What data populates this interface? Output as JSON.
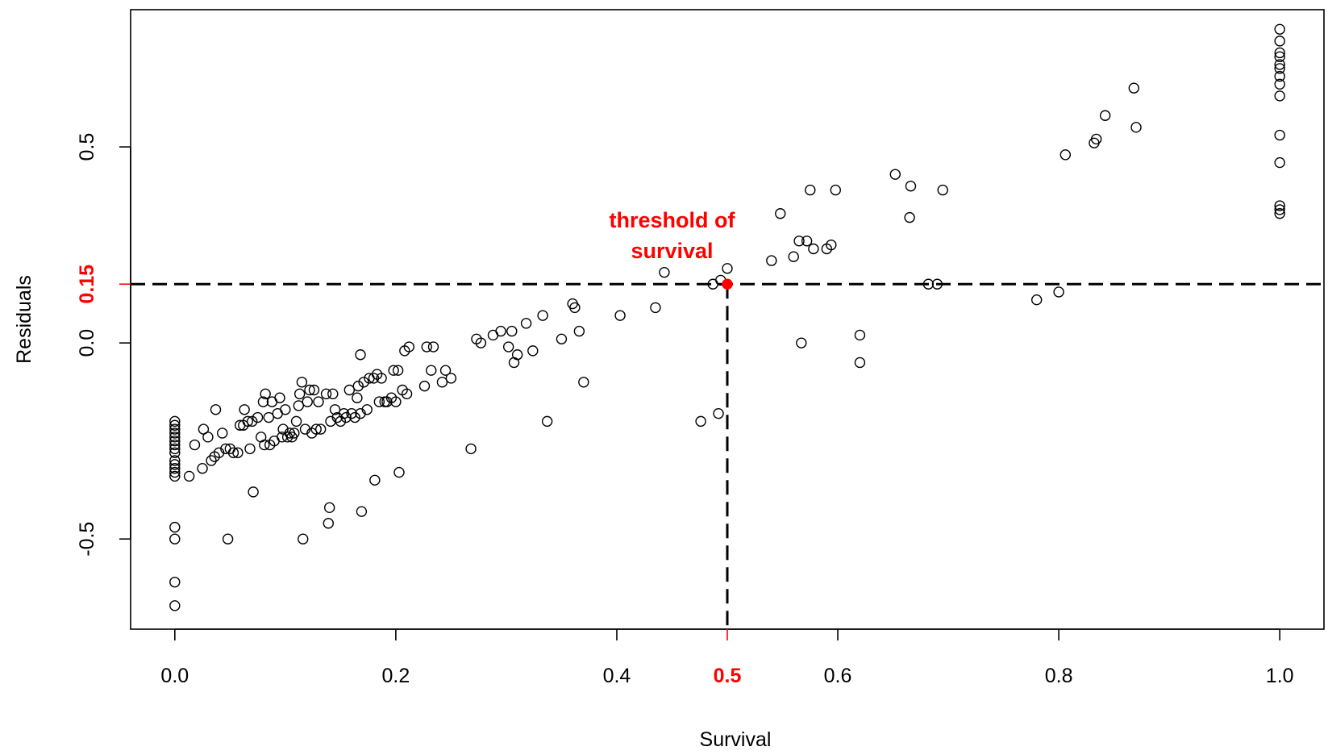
{
  "chart_data": {
    "type": "scatter",
    "xlabel": "Survival",
    "ylabel": "Residuals",
    "xlim": [
      -0.04,
      1.04
    ],
    "ylim": [
      -0.73,
      0.85
    ],
    "x_ticks": [
      0.0,
      0.2,
      0.4,
      0.6,
      0.8,
      1.0
    ],
    "x_tick_labels": [
      "0.0",
      "0.2",
      "0.4",
      "0.6",
      "0.8",
      "1.0"
    ],
    "y_ticks": [
      -0.5,
      0.0,
      0.5
    ],
    "y_tick_labels": [
      "-0.5",
      "0.0",
      "0.5"
    ],
    "highlight": {
      "x": 0.5,
      "y": 0.15,
      "x_label": "0.5",
      "y_label": "0.15",
      "color": "#ff0000",
      "line_style": "dashed"
    },
    "annotation": {
      "line1": "threshold of",
      "line2": "survival",
      "color": "#ff0000"
    },
    "grid": false,
    "legend": "none",
    "points": [
      [
        0.0,
        -0.2
      ],
      [
        0.0,
        -0.21
      ],
      [
        0.0,
        -0.22
      ],
      [
        0.0,
        -0.23
      ],
      [
        0.0,
        -0.24
      ],
      [
        0.0,
        -0.25
      ],
      [
        0.0,
        -0.26
      ],
      [
        0.0,
        -0.27
      ],
      [
        0.0,
        -0.28
      ],
      [
        0.0,
        -0.3
      ],
      [
        0.0,
        -0.31
      ],
      [
        0.0,
        -0.32
      ],
      [
        0.0,
        -0.33
      ],
      [
        0.0,
        -0.34
      ],
      [
        0.0,
        -0.47
      ],
      [
        0.0,
        -0.5
      ],
      [
        0.0,
        -0.61
      ],
      [
        0.0,
        -0.67
      ],
      [
        0.013,
        -0.34
      ],
      [
        0.018,
        -0.26
      ],
      [
        0.025,
        -0.32
      ],
      [
        0.026,
        -0.22
      ],
      [
        0.03,
        -0.24
      ],
      [
        0.033,
        -0.3
      ],
      [
        0.036,
        -0.29
      ],
      [
        0.037,
        -0.17
      ],
      [
        0.04,
        -0.28
      ],
      [
        0.043,
        -0.23
      ],
      [
        0.046,
        -0.27
      ],
      [
        0.048,
        -0.5
      ],
      [
        0.05,
        -0.27
      ],
      [
        0.053,
        -0.28
      ],
      [
        0.057,
        -0.28
      ],
      [
        0.059,
        -0.21
      ],
      [
        0.062,
        -0.21
      ],
      [
        0.063,
        -0.17
      ],
      [
        0.066,
        -0.2
      ],
      [
        0.068,
        -0.27
      ],
      [
        0.07,
        -0.2
      ],
      [
        0.071,
        -0.38
      ],
      [
        0.075,
        -0.19
      ],
      [
        0.078,
        -0.24
      ],
      [
        0.08,
        -0.15
      ],
      [
        0.081,
        -0.26
      ],
      [
        0.082,
        -0.13
      ],
      [
        0.085,
        -0.19
      ],
      [
        0.086,
        -0.26
      ],
      [
        0.088,
        -0.15
      ],
      [
        0.09,
        -0.25
      ],
      [
        0.093,
        -0.18
      ],
      [
        0.095,
        -0.14
      ],
      [
        0.097,
        -0.24
      ],
      [
        0.098,
        -0.22
      ],
      [
        0.1,
        -0.17
      ],
      [
        0.102,
        -0.24
      ],
      [
        0.104,
        -0.23
      ],
      [
        0.106,
        -0.24
      ],
      [
        0.108,
        -0.23
      ],
      [
        0.11,
        -0.2
      ],
      [
        0.112,
        -0.16
      ],
      [
        0.113,
        -0.13
      ],
      [
        0.115,
        -0.1
      ],
      [
        0.116,
        -0.5
      ],
      [
        0.118,
        -0.22
      ],
      [
        0.12,
        -0.15
      ],
      [
        0.122,
        -0.12
      ],
      [
        0.124,
        -0.23
      ],
      [
        0.126,
        -0.12
      ],
      [
        0.128,
        -0.22
      ],
      [
        0.13,
        -0.15
      ],
      [
        0.132,
        -0.22
      ],
      [
        0.137,
        -0.13
      ],
      [
        0.139,
        -0.46
      ],
      [
        0.14,
        -0.42
      ],
      [
        0.141,
        -0.2
      ],
      [
        0.143,
        -0.13
      ],
      [
        0.145,
        -0.17
      ],
      [
        0.147,
        -0.19
      ],
      [
        0.15,
        -0.2
      ],
      [
        0.153,
        -0.18
      ],
      [
        0.155,
        -0.19
      ],
      [
        0.158,
        -0.12
      ],
      [
        0.16,
        -0.18
      ],
      [
        0.163,
        -0.19
      ],
      [
        0.165,
        -0.14
      ],
      [
        0.166,
        -0.11
      ],
      [
        0.168,
        -0.18
      ],
      [
        0.168,
        -0.03
      ],
      [
        0.169,
        -0.43
      ],
      [
        0.171,
        -0.1
      ],
      [
        0.174,
        -0.17
      ],
      [
        0.176,
        -0.09
      ],
      [
        0.18,
        -0.09
      ],
      [
        0.181,
        -0.35
      ],
      [
        0.183,
        -0.08
      ],
      [
        0.185,
        -0.15
      ],
      [
        0.187,
        -0.09
      ],
      [
        0.19,
        -0.15
      ],
      [
        0.192,
        -0.15
      ],
      [
        0.196,
        -0.14
      ],
      [
        0.198,
        -0.07
      ],
      [
        0.2,
        -0.15
      ],
      [
        0.202,
        -0.07
      ],
      [
        0.203,
        -0.33
      ],
      [
        0.206,
        -0.12
      ],
      [
        0.208,
        -0.02
      ],
      [
        0.21,
        -0.13
      ],
      [
        0.212,
        -0.01
      ],
      [
        0.226,
        -0.11
      ],
      [
        0.228,
        -0.01
      ],
      [
        0.232,
        -0.07
      ],
      [
        0.234,
        -0.01
      ],
      [
        0.242,
        -0.1
      ],
      [
        0.245,
        -0.07
      ],
      [
        0.25,
        -0.09
      ],
      [
        0.268,
        -0.27
      ],
      [
        0.273,
        0.01
      ],
      [
        0.277,
        0.0
      ],
      [
        0.288,
        0.02
      ],
      [
        0.295,
        0.03
      ],
      [
        0.302,
        -0.01
      ],
      [
        0.305,
        0.03
      ],
      [
        0.307,
        -0.05
      ],
      [
        0.31,
        -0.03
      ],
      [
        0.318,
        0.05
      ],
      [
        0.324,
        -0.02
      ],
      [
        0.333,
        0.07
      ],
      [
        0.337,
        -0.2
      ],
      [
        0.35,
        0.01
      ],
      [
        0.36,
        0.1
      ],
      [
        0.362,
        0.09
      ],
      [
        0.366,
        0.03
      ],
      [
        0.37,
        -0.1
      ],
      [
        0.403,
        0.07
      ],
      [
        0.435,
        0.09
      ],
      [
        0.443,
        0.18
      ],
      [
        0.476,
        -0.2
      ],
      [
        0.487,
        0.15
      ],
      [
        0.492,
        -0.18
      ],
      [
        0.494,
        0.16
      ],
      [
        0.5,
        0.19
      ],
      [
        0.54,
        0.21
      ],
      [
        0.548,
        0.33
      ],
      [
        0.56,
        0.22
      ],
      [
        0.565,
        0.26
      ],
      [
        0.567,
        0.0
      ],
      [
        0.572,
        0.26
      ],
      [
        0.575,
        0.39
      ],
      [
        0.578,
        0.24
      ],
      [
        0.59,
        0.24
      ],
      [
        0.594,
        0.25
      ],
      [
        0.598,
        0.39
      ],
      [
        0.62,
        0.02
      ],
      [
        0.62,
        -0.05
      ],
      [
        0.652,
        0.43
      ],
      [
        0.665,
        0.32
      ],
      [
        0.666,
        0.4
      ],
      [
        0.682,
        0.15
      ],
      [
        0.69,
        0.15
      ],
      [
        0.695,
        0.39
      ],
      [
        0.78,
        0.11
      ],
      [
        0.8,
        0.13
      ],
      [
        0.806,
        0.48
      ],
      [
        0.832,
        0.51
      ],
      [
        0.834,
        0.52
      ],
      [
        0.842,
        0.58
      ],
      [
        0.868,
        0.65
      ],
      [
        0.87,
        0.55
      ],
      [
        1.0,
        0.33
      ],
      [
        1.0,
        0.34
      ],
      [
        1.0,
        0.35
      ],
      [
        1.0,
        0.46
      ],
      [
        1.0,
        0.53
      ],
      [
        1.0,
        0.63
      ],
      [
        1.0,
        0.66
      ],
      [
        1.0,
        0.68
      ],
      [
        1.0,
        0.7
      ],
      [
        1.0,
        0.71
      ],
      [
        1.0,
        0.73
      ],
      [
        1.0,
        0.74
      ],
      [
        1.0,
        0.77
      ],
      [
        1.0,
        0.8
      ]
    ]
  }
}
